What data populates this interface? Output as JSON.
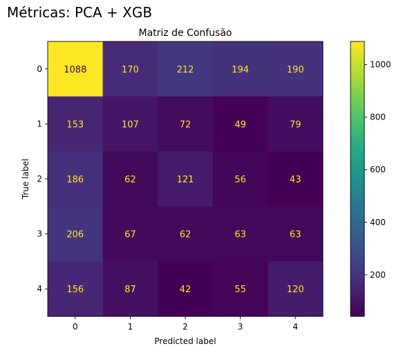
{
  "figure_title": "Métricas: PCA + XGB",
  "chart_data": {
    "type": "heatmap",
    "title": "Matriz de Confusão",
    "xlabel": "Predicted label",
    "ylabel": "True label",
    "x_categories": [
      "0",
      "1",
      "2",
      "3",
      "4"
    ],
    "y_categories": [
      "0",
      "1",
      "2",
      "3",
      "4"
    ],
    "values": [
      [
        1088,
        170,
        212,
        194,
        190
      ],
      [
        153,
        107,
        72,
        49,
        79
      ],
      [
        186,
        62,
        121,
        56,
        43
      ],
      [
        206,
        67,
        62,
        63,
        63
      ],
      [
        156,
        87,
        42,
        55,
        120
      ]
    ],
    "colormap": "viridis",
    "color_range": [
      42,
      1088
    ],
    "colorbar_ticks": [
      200,
      400,
      600,
      800,
      1000
    ],
    "grid": false,
    "text_color_on_dark": "#fde725",
    "text_color_on_light": "#440154"
  }
}
